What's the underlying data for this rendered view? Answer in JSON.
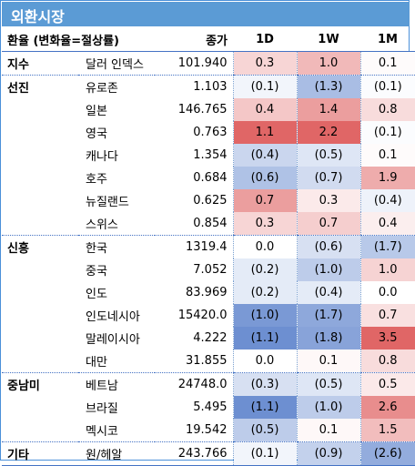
{
  "title": "외환시장",
  "header": {
    "label": "환율 (변화율=절상률)",
    "close": "종가",
    "d1": "1D",
    "w1": "1W",
    "m1": "1M"
  },
  "rows": [
    {
      "group": "지수",
      "name": "달러 인덱스",
      "close": "101.940",
      "d1": "0.3",
      "w1": "1.0",
      "m1": "0.1"
    },
    {
      "group": "선진",
      "name": "유로존",
      "close": "1.103",
      "d1": "(0.1)",
      "w1": "(1.3)",
      "m1": "(0.1)"
    },
    {
      "group": "",
      "name": "일본",
      "close": "146.765",
      "d1": "0.4",
      "w1": "1.4",
      "m1": "0.8"
    },
    {
      "group": "",
      "name": "영국",
      "close": "0.763",
      "d1": "1.1",
      "w1": "2.2",
      "m1": "(0.1)"
    },
    {
      "group": "",
      "name": "캐나다",
      "close": "1.354",
      "d1": "(0.4)",
      "w1": "(0.5)",
      "m1": "0.1"
    },
    {
      "group": "",
      "name": "호주",
      "close": "0.684",
      "d1": "(0.6)",
      "w1": "(0.7)",
      "m1": "1.9"
    },
    {
      "group": "",
      "name": "뉴질랜드",
      "close": "0.625",
      "d1": "0.7",
      "w1": "0.3",
      "m1": "(0.4)"
    },
    {
      "group": "",
      "name": "스위스",
      "close": "0.854",
      "d1": "0.3",
      "w1": "0.7",
      "m1": "0.4"
    },
    {
      "group": "신흥",
      "name": "한국",
      "close": "1319.4",
      "d1": "0.0",
      "w1": "(0.6)",
      "m1": "(1.7)"
    },
    {
      "group": "",
      "name": "중국",
      "close": "7.052",
      "d1": "(0.2)",
      "w1": "(1.0)",
      "m1": "1.0"
    },
    {
      "group": "",
      "name": "인도",
      "close": "83.969",
      "d1": "(0.2)",
      "w1": "(0.4)",
      "m1": "0.0"
    },
    {
      "group": "",
      "name": "인도네시아",
      "close": "15420.0",
      "d1": "(1.0)",
      "w1": "(1.7)",
      "m1": "0.7"
    },
    {
      "group": "",
      "name": "말레이시아",
      "close": "4.222",
      "d1": "(1.1)",
      "w1": "(1.8)",
      "m1": "3.5"
    },
    {
      "group": "",
      "name": "대만",
      "close": "31.855",
      "d1": "0.0",
      "w1": "0.1",
      "m1": "0.8"
    },
    {
      "group": "중남미",
      "name": "베트남",
      "close": "24748.0",
      "d1": "(0.3)",
      "w1": "(0.5)",
      "m1": "0.5"
    },
    {
      "group": "",
      "name": "브라질",
      "close": "5.495",
      "d1": "(1.1)",
      "w1": "(1.0)",
      "m1": "2.6"
    },
    {
      "group": "",
      "name": "멕시코",
      "close": "19.542",
      "d1": "(0.5)",
      "w1": "0.1",
      "m1": "1.5"
    },
    {
      "group": "기타",
      "name": "원/헤알",
      "close": "243.766",
      "d1": "(0.1)",
      "w1": "(0.9)",
      "m1": "(2.6)"
    }
  ],
  "colors": {
    "title_bg": "#5b9bd5",
    "positive_max": "#e06666",
    "negative_max": "#6d8fd1",
    "neutral": "#ffffff"
  }
}
